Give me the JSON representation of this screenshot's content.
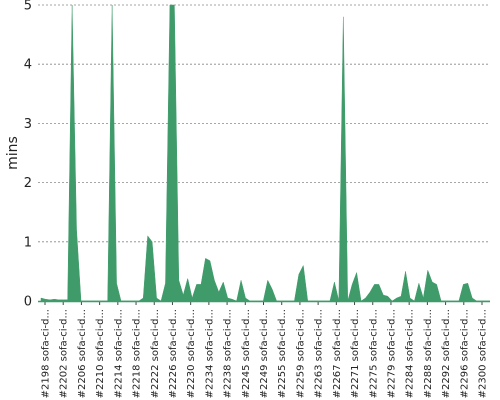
{
  "chart_data": {
    "type": "area",
    "ylabel": "mins",
    "ylim": [
      0,
      5
    ],
    "y_ticks": [
      0,
      1,
      2,
      3,
      4,
      5
    ],
    "grid": true,
    "color": "#3f9b6a",
    "grid_color": "#888888",
    "x_tick_labels": [
      "#2198 sofa-ci-d...",
      "#2202 sofa-ci-d...",
      "#2206 sofa-ci-d...",
      "#2210 sofa-ci-d...",
      "#2214 sofa-ci-d...",
      "#2218 sofa-ci-d...",
      "#2222 sofa-ci-d...",
      "#2226 sofa-ci-d...",
      "#2230 sofa-ci-d...",
      "#2234 sofa-ci-d...",
      "#2238 sofa-ci-d...",
      "#2245 sofa-ci-d...",
      "#2249 sofa-ci-d...",
      "#2255 sofa-ci-d...",
      "#2259 sofa-ci-d...",
      "#2263 sofa-ci-d...",
      "#2267 sofa-ci-d...",
      "#2271 sofa-ci-d...",
      "#2275 sofa-ci-d...",
      "#2279 sofa-ci-d...",
      "#2284 sofa-ci-d...",
      "#2288 sofa-ci-d...",
      "#2292 sofa-ci-d...",
      "#2296 sofa-ci-d...",
      "#2300 sofa-ci-d..."
    ],
    "values": [
      0.05,
      0.03,
      0.02,
      0.03,
      0.02,
      0.02,
      0.02,
      5.0,
      1.2,
      0.0,
      0.0,
      0.0,
      0.0,
      0.0,
      0.0,
      0.0,
      5.0,
      0.3,
      0.0,
      0.0,
      0.0,
      0.0,
      0.0,
      0.05,
      1.1,
      1.0,
      0.05,
      0.0,
      0.3,
      5.0,
      5.0,
      0.35,
      0.1,
      0.38,
      0.05,
      0.28,
      0.28,
      0.72,
      0.68,
      0.35,
      0.15,
      0.32,
      0.05,
      0.03,
      0.0,
      0.35,
      0.05,
      0.0,
      0.0,
      0.0,
      0.0,
      0.35,
      0.2,
      0.0,
      0.0,
      0.0,
      0.0,
      0.0,
      0.45,
      0.6,
      0.0,
      0.0,
      0.0,
      0.0,
      0.0,
      0.0,
      0.32,
      0.0,
      4.8,
      0.0,
      0.28,
      0.48,
      0.0,
      0.05,
      0.15,
      0.28,
      0.28,
      0.1,
      0.08,
      0.0,
      0.05,
      0.08,
      0.5,
      0.05,
      0.0,
      0.3,
      0.05,
      0.52,
      0.32,
      0.28,
      0.0,
      0.0,
      0.0,
      0.0,
      0.0,
      0.28,
      0.3,
      0.05,
      0.0,
      0.0,
      0.0,
      0.0
    ]
  }
}
